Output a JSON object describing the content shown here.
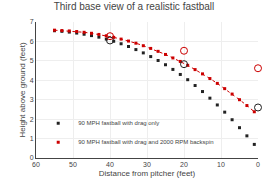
{
  "chart_data": {
    "type": "scatter",
    "title": "Third base view of a realistic fastball",
    "xlabel": "Distance from pitcher (feet)",
    "ylabel": "Height above ground (feet)",
    "xlim": [
      60,
      0
    ],
    "ylim": [
      0,
      7
    ],
    "xticks": [
      60,
      50,
      40,
      30,
      20,
      10,
      0
    ],
    "yticks": [
      0,
      1,
      2,
      3,
      4,
      5,
      6,
      7
    ],
    "grid": true,
    "legend": "lower left",
    "series": [
      {
        "name": "90 MPH fastball with drag only",
        "color": "#222222",
        "marker": "square",
        "x": [
          55,
          53,
          51,
          49,
          47,
          45,
          43,
          41,
          39,
          37,
          35,
          33,
          31,
          29,
          27,
          25,
          23,
          21,
          19,
          17,
          15,
          13,
          11,
          9,
          7,
          5,
          3,
          1
        ],
        "values": [
          6.55,
          6.52,
          6.48,
          6.43,
          6.37,
          6.3,
          6.22,
          6.12,
          6.01,
          5.88,
          5.74,
          5.58,
          5.41,
          5.22,
          5.02,
          4.8,
          4.56,
          4.3,
          4.03,
          3.73,
          3.42,
          3.08,
          2.73,
          2.36,
          1.97,
          1.56,
          1.14,
          0.7
        ]
      },
      {
        "name": "90 MPH fastball with drag and 2000 RPM backspin",
        "color": "#cc0000",
        "marker": "square",
        "line_style": "dotted",
        "x": [
          55,
          53,
          51,
          49,
          47,
          45,
          43,
          41,
          39,
          37,
          35,
          33,
          31,
          29,
          27,
          25,
          23,
          21,
          19,
          17,
          15,
          13,
          11,
          9,
          7,
          5,
          3,
          1
        ],
        "values": [
          6.58,
          6.56,
          6.54,
          6.51,
          6.47,
          6.42,
          6.36,
          6.29,
          6.21,
          6.12,
          6.02,
          5.91,
          5.78,
          5.64,
          5.49,
          5.33,
          5.15,
          4.97,
          4.77,
          4.55,
          4.33,
          4.09,
          3.84,
          3.57,
          3.29,
          3.0,
          2.7,
          2.38
        ]
      },
      {
        "color": "#222222",
        "marker": "circle-open",
        "x": [
          40,
          20,
          0
        ],
        "values": [
          6.05,
          4.83,
          2.6
        ]
      },
      {
        "color": "#cc0000",
        "marker": "circle-open",
        "x": [
          40,
          20,
          0
        ],
        "values": [
          6.27,
          5.52,
          4.62
        ]
      }
    ]
  }
}
